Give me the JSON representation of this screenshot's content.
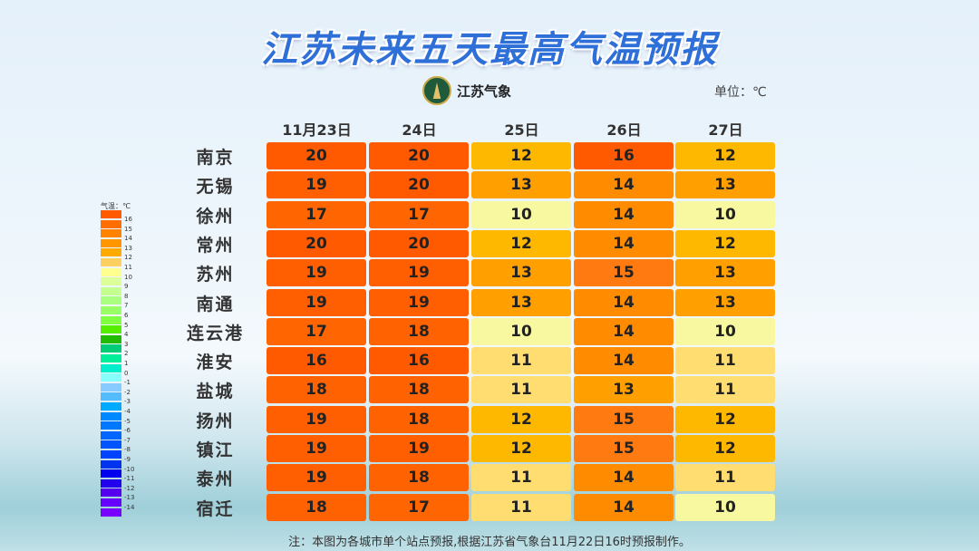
{
  "title": "江苏未来五天最高气温预报",
  "logo_text": "江苏气象",
  "unit": "单位：℃",
  "note": "注：本图为各城市单个站点预报,根据江苏省气象台11月22日16时预报制作。",
  "chart_data": {
    "type": "table",
    "columns": [
      "11月23日",
      "24日",
      "25日",
      "26日",
      "27日"
    ],
    "rows": [
      {
        "city": "南京",
        "values": [
          20,
          20,
          12,
          16,
          12
        ]
      },
      {
        "city": "无锡",
        "values": [
          19,
          20,
          13,
          14,
          13
        ]
      },
      {
        "city": "徐州",
        "values": [
          17,
          17,
          10,
          14,
          10
        ]
      },
      {
        "city": "常州",
        "values": [
          20,
          20,
          12,
          14,
          12
        ]
      },
      {
        "city": "苏州",
        "values": [
          19,
          19,
          13,
          15,
          13
        ]
      },
      {
        "city": "南通",
        "values": [
          19,
          19,
          13,
          14,
          13
        ]
      },
      {
        "city": "连云港",
        "values": [
          17,
          18,
          10,
          14,
          10
        ]
      },
      {
        "city": "淮安",
        "values": [
          16,
          16,
          11,
          14,
          11
        ]
      },
      {
        "city": "盐城",
        "values": [
          18,
          18,
          11,
          13,
          11
        ]
      },
      {
        "city": "扬州",
        "values": [
          19,
          18,
          12,
          15,
          12
        ]
      },
      {
        "city": "镇江",
        "values": [
          19,
          19,
          12,
          15,
          12
        ]
      },
      {
        "city": "泰州",
        "values": [
          19,
          18,
          11,
          14,
          11
        ]
      },
      {
        "city": "宿迁",
        "values": [
          18,
          17,
          11,
          14,
          10
        ]
      }
    ],
    "legend": {
      "title": "气温：℃",
      "labels": [
        "16",
        "15",
        "14",
        "13",
        "12",
        "11",
        "10",
        "9",
        "8",
        "7",
        "6",
        "5",
        "4",
        "3",
        "2",
        "1",
        "0",
        "-1",
        "-2",
        "-3",
        "-4",
        "-5",
        "-6",
        "-7",
        "-8",
        "-9",
        "-10",
        "-11",
        "-12",
        "-13",
        "-14"
      ],
      "colors": [
        "#ff5a00",
        "#ff6e00",
        "#ff8200",
        "#ff9600",
        "#ffaa00",
        "#ffd060",
        "#ffff90",
        "#ddff99",
        "#c4ff90",
        "#aaff80",
        "#99ff66",
        "#7fff40",
        "#55ee00",
        "#22bb00",
        "#00cc77",
        "#00ee99",
        "#00eecc",
        "#88ffff",
        "#88ccff",
        "#55bbff",
        "#00aaff",
        "#0088ff",
        "#0077ff",
        "#0066ff",
        "#0055ff",
        "#0044ff",
        "#0033ee",
        "#0000ee",
        "#2200ee",
        "#5500ee",
        "#6600ff",
        "#7700ff"
      ]
    }
  },
  "value_colors": {
    "20": "#ff5a00",
    "19": "#ff5f00",
    "18": "#ff6200",
    "17": "#ff6500",
    "16": "#ff5a00",
    "15": "#ff7a10",
    "14": "#ff8c00",
    "13": "#ffa000",
    "12": "#ffb800",
    "11": "#ffdd70",
    "10": "#f8f8a0"
  }
}
